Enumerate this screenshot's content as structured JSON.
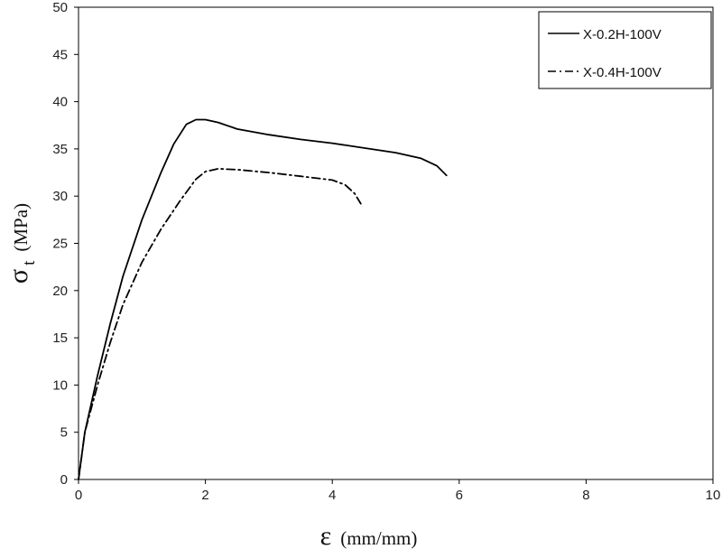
{
  "chart_data": {
    "type": "line",
    "xlim": [
      0,
      10
    ],
    "ylim": [
      0,
      50
    ],
    "xticks": [
      0,
      2,
      4,
      6,
      8,
      10
    ],
    "yticks": [
      0,
      5,
      10,
      15,
      20,
      25,
      30,
      35,
      40,
      45,
      50
    ],
    "xlabel": {
      "symbol": "ε",
      "unit": "(mm/mm)"
    },
    "ylabel": {
      "symbol": "σ",
      "subscript": "t",
      "unit": "(MPa)"
    },
    "grid": false,
    "legend_position": "top-right",
    "series": [
      {
        "name": "X-0.2H-100V",
        "style": "solid",
        "color": "#000000",
        "x": [
          0,
          0.1,
          0.3,
          0.5,
          0.7,
          1.0,
          1.3,
          1.5,
          1.7,
          1.85,
          2.0,
          2.2,
          2.5,
          3.0,
          3.5,
          4.0,
          4.5,
          5.0,
          5.4,
          5.65,
          5.8
        ],
        "y": [
          0,
          5,
          11,
          16.5,
          21.5,
          27.5,
          32.5,
          35.5,
          37.6,
          38.1,
          38.1,
          37.8,
          37.1,
          36.5,
          36.0,
          35.6,
          35.1,
          34.6,
          34.0,
          33.2,
          32.2
        ]
      },
      {
        "name": "X-0.4H-100V",
        "style": "dashdot",
        "color": "#000000",
        "x": [
          0,
          0.1,
          0.3,
          0.5,
          0.7,
          1.0,
          1.3,
          1.6,
          1.85,
          2.0,
          2.2,
          2.5,
          3.0,
          3.5,
          4.0,
          4.2,
          4.35,
          4.45
        ],
        "y": [
          0,
          5,
          10,
          14.5,
          18.5,
          23,
          26.5,
          29.5,
          31.8,
          32.6,
          32.9,
          32.8,
          32.5,
          32.1,
          31.7,
          31.2,
          30.3,
          29.2
        ]
      }
    ]
  }
}
